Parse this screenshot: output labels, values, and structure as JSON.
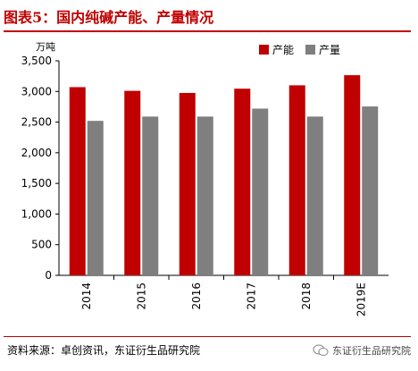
{
  "figure_title": "图表5：国内纯碱产能、产量情况",
  "source_text": "资料来源：卓创资讯，东证衍生品研究院",
  "watermark_text": "东证衍生品研究院",
  "colors": {
    "capacity": "#c00000",
    "production": "#7f7f7f",
    "title": "#c00000"
  },
  "chart_data": {
    "type": "bar",
    "unit_label": "万吨",
    "categories": [
      "2014",
      "2015",
      "2016",
      "2017",
      "2018",
      "2019E"
    ],
    "series": [
      {
        "name": "产能",
        "values": [
          3070,
          3010,
          2975,
          3045,
          3100,
          3265
        ]
      },
      {
        "name": "产量",
        "values": [
          2520,
          2590,
          2590,
          2720,
          2590,
          2755
        ]
      }
    ],
    "ylim": [
      0,
      3500
    ],
    "yticks": [
      0,
      500,
      1000,
      1500,
      2000,
      2500,
      3000,
      3500
    ],
    "ytick_labels": [
      "0",
      "500",
      "1,000",
      "1,500",
      "2,000",
      "2,500",
      "3,000",
      "3,500"
    ],
    "legend_position": "top-right",
    "grid": false
  }
}
